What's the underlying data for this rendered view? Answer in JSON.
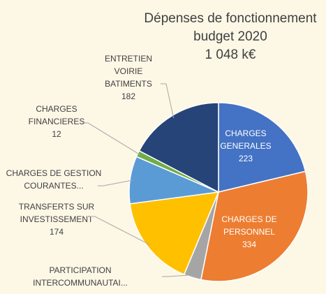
{
  "chart_data": {
    "type": "pie",
    "title": [
      "Dépenses de fonctionnement",
      "budget 2020",
      "1 048 k€"
    ],
    "categories": [
      [
        "CHARGES",
        "GENERALES"
      ],
      [
        "CHARGES DE",
        "PERSONNEL"
      ],
      [
        "PARTICIPATION",
        "INTERCOMMUNAUTAI..."
      ],
      [
        "TRANSFERTS SUR",
        "INVESTISSEMENT"
      ],
      [
        "CHARGES DE GESTION",
        "COURANTES..."
      ],
      [
        "CHARGES",
        "FINANCIERES"
      ],
      [
        "ENTRETIEN",
        "VOIRIE",
        "BATIMENTS"
      ]
    ],
    "values": [
      223,
      334,
      33,
      174,
      90,
      12,
      182
    ],
    "value_shown": [
      true,
      true,
      false,
      true,
      false,
      true,
      true
    ],
    "colors": [
      "#4472c4",
      "#ed7d31",
      "#a5a5a5",
      "#ffc000",
      "#5b9bd5",
      "#70ad47",
      "#264478"
    ]
  }
}
